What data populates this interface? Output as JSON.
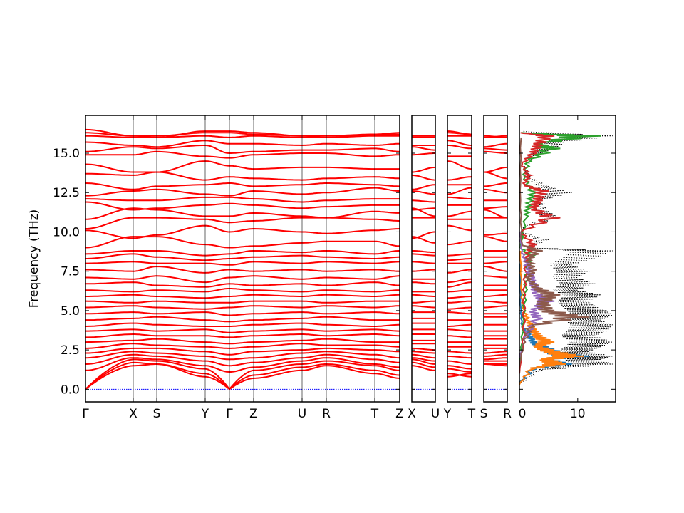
{
  "chart_data": {
    "type": "line",
    "ylabel": "Frequency (THz)",
    "ylim": [
      -0.8,
      17.4
    ],
    "yticks": [
      "0.0",
      "2.5",
      "5.0",
      "7.5",
      "10.0",
      "12.5",
      "15.0"
    ],
    "ytick_values": [
      0,
      2.5,
      5,
      7.5,
      10,
      12.5,
      15
    ],
    "band_color": "#ff0000",
    "zero_line_color": "#0000ff",
    "panels": [
      {
        "labels": [
          "Γ",
          "X",
          "S",
          "Y",
          "Γ",
          "Z",
          "U",
          "R",
          "T",
          "Z"
        ]
      },
      {
        "labels": [
          "X",
          "U"
        ]
      },
      {
        "labels": [
          "Y",
          "T"
        ]
      },
      {
        "labels": [
          "S",
          "R"
        ]
      }
    ],
    "bands_note_order": "values at main path points then X,U,Y,T,S,R",
    "bands": [
      [
        0,
        1.5,
        1.6,
        0.8,
        0,
        0.7,
        1.2,
        1.5,
        1.0,
        0.7,
        1.5,
        1.2,
        0.8,
        1.0,
        1.6,
        1.5
      ],
      [
        0,
        1.7,
        1.6,
        1.0,
        0,
        0.9,
        1.4,
        1.6,
        1.2,
        0.9,
        1.7,
        1.4,
        1.0,
        0.8,
        1.6,
        1.6
      ],
      [
        0,
        1.9,
        1.8,
        1.3,
        0,
        1.2,
        1.6,
        1.8,
        1.5,
        1.2,
        1.9,
        1.6,
        1.3,
        1.1,
        1.8,
        1.8
      ],
      [
        1.2,
        2.0,
        1.9,
        1.5,
        1.1,
        1.4,
        1.8,
        2.0,
        1.6,
        1.4,
        2.0,
        1.8,
        1.5,
        1.3,
        1.9,
        2.0
      ],
      [
        1.6,
        2.2,
        2.1,
        1.8,
        1.5,
        1.7,
        2.0,
        2.2,
        1.9,
        1.7,
        2.2,
        2.0,
        1.8,
        1.6,
        2.1,
        2.2
      ],
      [
        2.0,
        2.4,
        2.3,
        2.1,
        1.9,
        2.0,
        2.3,
        2.4,
        2.2,
        2.0,
        2.4,
        2.3,
        2.1,
        2.0,
        2.3,
        2.4
      ],
      [
        2.3,
        2.6,
        2.6,
        2.4,
        2.2,
        2.4,
        2.5,
        2.6,
        2.5,
        2.4,
        2.6,
        2.5,
        2.4,
        2.3,
        2.6,
        2.6
      ],
      [
        2.6,
        2.9,
        2.8,
        2.7,
        2.6,
        2.7,
        2.9,
        2.8,
        2.8,
        2.7,
        2.9,
        2.9,
        2.7,
        2.7,
        2.8,
        2.8
      ],
      [
        3.0,
        3.1,
        3.2,
        3.0,
        2.9,
        3.0,
        3.1,
        3.2,
        3.0,
        3.0,
        3.1,
        3.1,
        3.0,
        3.0,
        3.2,
        3.2
      ],
      [
        3.3,
        3.5,
        3.4,
        3.4,
        3.3,
        3.4,
        3.5,
        3.4,
        3.5,
        3.4,
        3.5,
        3.5,
        3.4,
        3.3,
        3.4,
        3.4
      ],
      [
        3.7,
        3.8,
        3.7,
        3.8,
        3.6,
        3.7,
        3.8,
        3.7,
        3.8,
        3.7,
        3.8,
        3.8,
        3.8,
        3.7,
        3.7,
        3.7
      ],
      [
        4.0,
        4.2,
        4.1,
        4.0,
        4.0,
        4.1,
        4.2,
        4.1,
        4.0,
        4.1,
        4.2,
        4.2,
        4.0,
        4.1,
        4.1,
        4.1
      ],
      [
        4.4,
        4.5,
        4.6,
        4.4,
        4.3,
        4.4,
        4.5,
        4.6,
        4.4,
        4.4,
        4.5,
        4.5,
        4.4,
        4.4,
        4.6,
        4.6
      ],
      [
        4.8,
        4.9,
        4.8,
        4.9,
        4.7,
        4.8,
        4.9,
        4.8,
        4.9,
        4.8,
        4.9,
        4.9,
        4.9,
        4.8,
        4.8,
        4.8
      ],
      [
        5.2,
        5.3,
        5.2,
        5.1,
        5.2,
        5.3,
        5.2,
        5.3,
        5.2,
        5.3,
        5.3,
        5.2,
        5.1,
        5.2,
        5.2,
        5.3
      ],
      [
        5.6,
        5.5,
        5.6,
        5.5,
        5.5,
        5.6,
        5.6,
        5.5,
        5.6,
        5.6,
        5.5,
        5.6,
        5.5,
        5.6,
        5.6,
        5.5
      ],
      [
        5.9,
        6.0,
        5.9,
        5.8,
        5.9,
        6.0,
        5.9,
        6.0,
        5.9,
        6.0,
        6.0,
        5.9,
        5.8,
        5.9,
        5.9,
        6.0
      ],
      [
        6.3,
        6.2,
        6.3,
        6.2,
        6.4,
        6.3,
        6.2,
        6.3,
        6.2,
        6.3,
        6.2,
        6.2,
        6.2,
        6.3,
        6.3,
        6.3
      ],
      [
        6.7,
        6.8,
        6.6,
        6.5,
        6.7,
        6.6,
        6.7,
        6.6,
        6.8,
        6.6,
        6.8,
        6.7,
        6.5,
        6.8,
        6.6,
        6.6
      ],
      [
        7.1,
        7.0,
        7.2,
        6.8,
        7.1,
        7.2,
        7.0,
        7.1,
        7.0,
        7.2,
        7.0,
        7.0,
        6.8,
        7.0,
        7.2,
        7.1
      ],
      [
        7.6,
        7.5,
        7.8,
        7.4,
        7.6,
        7.5,
        7.6,
        7.5,
        7.6,
        7.5,
        7.5,
        7.6,
        7.4,
        7.6,
        7.8,
        7.5
      ],
      [
        8.0,
        8.1,
        8.0,
        8.0,
        7.9,
        8.1,
        8.0,
        8.1,
        8.0,
        8.1,
        8.1,
        8.0,
        8.0,
        8.0,
        8.0,
        8.1
      ],
      [
        8.3,
        8.6,
        8.4,
        8.2,
        8.3,
        8.4,
        8.5,
        8.4,
        8.3,
        8.4,
        8.6,
        8.5,
        8.2,
        8.3,
        8.4,
        8.4
      ],
      [
        8.6,
        8.8,
        8.8,
        8.5,
        8.6,
        8.8,
        8.7,
        8.8,
        8.6,
        8.8,
        8.8,
        8.7,
        8.5,
        8.6,
        8.8,
        8.8
      ],
      [
        9.0,
        9.7,
        9.7,
        9.2,
        9.0,
        9.1,
        9.3,
        9.4,
        9.4,
        9.1,
        9.7,
        9.3,
        9.2,
        9.4,
        9.7,
        9.4
      ],
      [
        10.1,
        9.6,
        9.8,
        10.4,
        10.0,
        10.2,
        10.0,
        9.9,
        10.1,
        10.2,
        9.6,
        10.0,
        10.4,
        10.1,
        9.8,
        9.9
      ],
      [
        10.2,
        10.9,
        10.9,
        10.8,
        10.6,
        10.7,
        10.9,
        10.9,
        10.8,
        10.7,
        10.9,
        10.9,
        10.8,
        10.8,
        10.9,
        10.9
      ],
      [
        10.8,
        11.5,
        11.4,
        11.0,
        11.0,
        11.2,
        11.0,
        10.9,
        11.3,
        11.2,
        11.5,
        11.0,
        11.0,
        11.3,
        11.4,
        10.9
      ],
      [
        11.9,
        11.4,
        11.5,
        11.7,
        11.8,
        11.7,
        11.5,
        11.6,
        11.7,
        11.7,
        11.4,
        11.5,
        11.7,
        11.7,
        11.5,
        11.6
      ],
      [
        12.1,
        12.0,
        12.0,
        12.2,
        12.2,
        12.1,
        11.9,
        12.0,
        12.1,
        12.1,
        12.0,
        11.9,
        12.2,
        12.1,
        12.0,
        12.0
      ],
      [
        12.3,
        12.6,
        12.7,
        12.4,
        12.3,
        12.6,
        12.4,
        12.5,
        12.8,
        12.6,
        12.6,
        12.4,
        12.4,
        12.8,
        12.7,
        12.5
      ],
      [
        13.1,
        12.7,
        12.9,
        13.0,
        13.1,
        12.9,
        13.0,
        13.1,
        13.0,
        12.9,
        12.7,
        13.0,
        13.0,
        13.0,
        12.9,
        13.1
      ],
      [
        13.7,
        13.6,
        13.8,
        13.3,
        13.5,
        13.4,
        13.3,
        13.4,
        13.5,
        13.4,
        13.6,
        13.3,
        13.3,
        13.5,
        13.8,
        13.4
      ],
      [
        14.3,
        13.8,
        13.8,
        14.5,
        14.2,
        14.0,
        14.1,
        14.1,
        14.0,
        14.0,
        13.8,
        14.1,
        14.5,
        14.0,
        13.8,
        14.1
      ],
      [
        14.9,
        14.9,
        15.1,
        14.8,
        14.7,
        14.9,
        15.0,
        15.0,
        14.8,
        14.9,
        14.9,
        15.0,
        14.8,
        14.8,
        15.1,
        15.0
      ],
      [
        15.1,
        15.4,
        15.3,
        15.5,
        15.0,
        15.1,
        15.2,
        15.2,
        15.3,
        15.1,
        15.4,
        15.2,
        15.5,
        15.3,
        15.3,
        15.2
      ],
      [
        15.7,
        15.5,
        15.4,
        15.8,
        15.6,
        15.6,
        15.5,
        15.6,
        15.5,
        15.6,
        15.5,
        15.5,
        15.8,
        15.5,
        15.4,
        15.6
      ],
      [
        16.1,
        16.0,
        16.0,
        16.1,
        16.0,
        16.1,
        16.0,
        16.0,
        16.1,
        16.1,
        16.0,
        16.0,
        16.1,
        16.1,
        16.0,
        16.0
      ],
      [
        16.3,
        16.1,
        16.1,
        16.3,
        16.3,
        16.2,
        16.1,
        16.0,
        16.2,
        16.2,
        16.1,
        16.1,
        16.3,
        16.2,
        16.1,
        16.0
      ],
      [
        16.5,
        16.1,
        16.0,
        16.4,
        16.4,
        16.3,
        16.1,
        16.1,
        16.2,
        16.3,
        16.1,
        16.1,
        16.4,
        16.2,
        16.0,
        16.1
      ]
    ],
    "dos": {
      "xticks": [
        "0",
        "10"
      ],
      "xtick_values": [
        0,
        10
      ],
      "xlim": [
        0,
        16.5
      ],
      "series": [
        {
          "color": "#000000",
          "style": "dotted",
          "points": [
            [
              0.3,
              0
            ],
            [
              1.2,
              4
            ],
            [
              1.6,
              16
            ],
            [
              1.9,
              14
            ],
            [
              2.1,
              16
            ],
            [
              2.4,
              12
            ],
            [
              2.7,
              14
            ],
            [
              3.0,
              16
            ],
            [
              3.4,
              13
            ],
            [
              3.7,
              15
            ],
            [
              4.1,
              16
            ],
            [
              4.4,
              14
            ],
            [
              4.7,
              16
            ],
            [
              5.0,
              15
            ],
            [
              5.3,
              13
            ],
            [
              5.6,
              12
            ],
            [
              6.0,
              14
            ],
            [
              6.3,
              10
            ],
            [
              6.7,
              13
            ],
            [
              7.1,
              10
            ],
            [
              7.5,
              12
            ],
            [
              7.9,
              9
            ],
            [
              8.3,
              13
            ],
            [
              8.8,
              16
            ],
            [
              9.0,
              2
            ],
            [
              9.5,
              5
            ],
            [
              10.0,
              0.5
            ],
            [
              10.3,
              1
            ],
            [
              10.9,
              7
            ],
            [
              11.3,
              5
            ],
            [
              12.0,
              4
            ],
            [
              12.5,
              9
            ],
            [
              12.9,
              5
            ],
            [
              13.5,
              2
            ],
            [
              14.1,
              1
            ],
            [
              14.9,
              3
            ],
            [
              15.3,
              6
            ],
            [
              15.7,
              8
            ],
            [
              16.1,
              16
            ],
            [
              16.4,
              0.5
            ]
          ]
        },
        {
          "color": "#1f77b4",
          "style": "solid",
          "points": [
            [
              0.4,
              0
            ],
            [
              1.3,
              3
            ],
            [
              1.6,
              9
            ],
            [
              1.9,
              6
            ],
            [
              2.1,
              12
            ],
            [
              2.3,
              8
            ],
            [
              2.7,
              5
            ],
            [
              3.0,
              3
            ],
            [
              3.5,
              2
            ],
            [
              4.0,
              0.6
            ],
            [
              5.0,
              0.3
            ],
            [
              8.0,
              0.1
            ]
          ]
        },
        {
          "color": "#ff7f0e",
          "style": "solid",
          "points": [
            [
              0.3,
              0
            ],
            [
              1.3,
              2.5
            ],
            [
              1.6,
              8
            ],
            [
              1.9,
              6
            ],
            [
              2.1,
              11
            ],
            [
              2.4,
              7
            ],
            [
              2.7,
              4
            ],
            [
              3.0,
              6
            ],
            [
              3.4,
              4
            ],
            [
              3.8,
              3
            ],
            [
              4.3,
              2
            ],
            [
              5.0,
              1
            ],
            [
              6.0,
              0.5
            ],
            [
              8.8,
              0.2
            ]
          ]
        },
        {
          "color": "#2ca02c",
          "style": "solid",
          "points": [
            [
              1.0,
              0
            ],
            [
              3.0,
              0.5
            ],
            [
              5.0,
              1
            ],
            [
              7.0,
              1.5
            ],
            [
              8.5,
              2.5
            ],
            [
              9.0,
              0.2
            ],
            [
              11.0,
              1.5
            ],
            [
              11.7,
              2
            ],
            [
              12.5,
              3
            ],
            [
              13.5,
              1
            ],
            [
              14.5,
              2
            ],
            [
              15.3,
              7
            ],
            [
              15.6,
              4
            ],
            [
              16.1,
              14
            ],
            [
              16.3,
              0.3
            ]
          ]
        },
        {
          "color": "#d62728",
          "style": "solid",
          "points": [
            [
              1.0,
              0
            ],
            [
              3.5,
              1
            ],
            [
              6.0,
              1
            ],
            [
              8.0,
              1.5
            ],
            [
              8.8,
              2
            ],
            [
              9.2,
              3
            ],
            [
              10.0,
              0.3
            ],
            [
              10.9,
              7
            ],
            [
              11.5,
              3
            ],
            [
              12.0,
              4
            ],
            [
              12.6,
              5
            ],
            [
              13.0,
              1
            ],
            [
              13.6,
              2
            ],
            [
              14.3,
              0.5
            ],
            [
              15.0,
              3
            ],
            [
              15.5,
              4
            ],
            [
              16.1,
              6
            ],
            [
              16.3,
              0.2
            ]
          ]
        },
        {
          "color": "#9467bd",
          "style": "solid",
          "points": [
            [
              2.0,
              0
            ],
            [
              3.5,
              1.5
            ],
            [
              4.5,
              4
            ],
            [
              5.0,
              3
            ],
            [
              5.6,
              6
            ],
            [
              6.0,
              4
            ],
            [
              6.7,
              3
            ],
            [
              7.3,
              2.5
            ],
            [
              8.0,
              1.5
            ],
            [
              8.8,
              0.5
            ],
            [
              10.0,
              0.1
            ]
          ]
        },
        {
          "color": "#8c5a4b",
          "style": "solid",
          "points": [
            [
              1.5,
              0
            ],
            [
              3.0,
              1
            ],
            [
              4.0,
              2.5
            ],
            [
              4.6,
              12
            ],
            [
              5.0,
              6
            ],
            [
              5.5,
              5
            ],
            [
              6.0,
              7
            ],
            [
              6.4,
              4
            ],
            [
              7.0,
              2
            ],
            [
              7.6,
              3
            ],
            [
              8.2,
              2
            ],
            [
              8.8,
              4
            ],
            [
              9.2,
              0.5
            ],
            [
              12.0,
              0.2
            ],
            [
              16.0,
              0.3
            ]
          ]
        }
      ]
    }
  }
}
